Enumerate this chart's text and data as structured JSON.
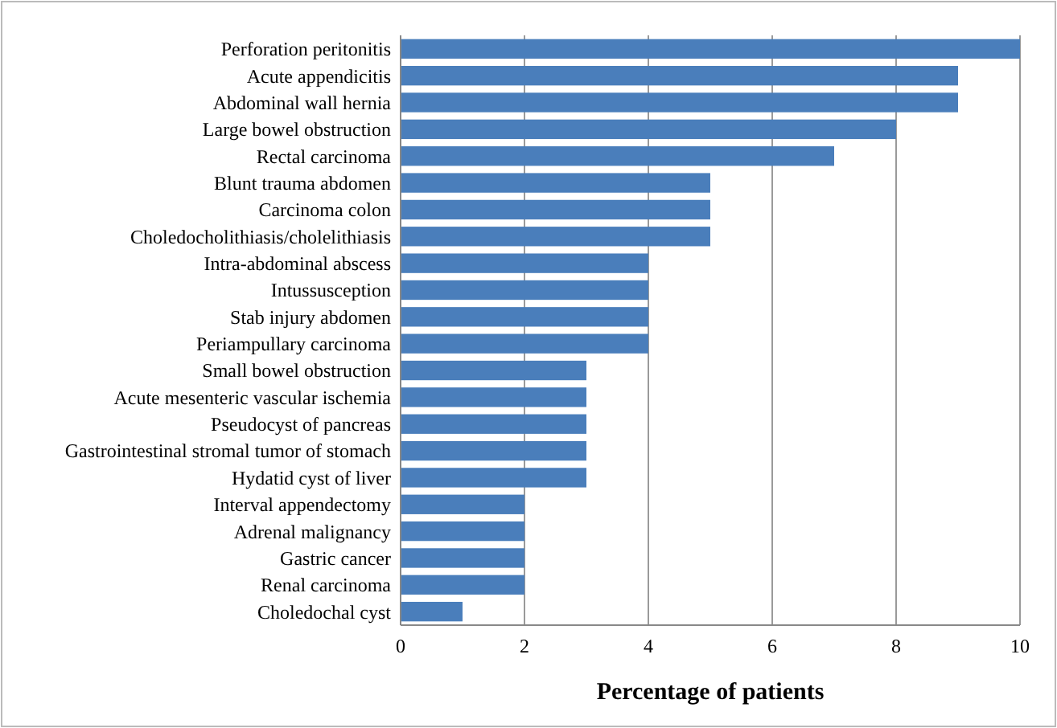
{
  "chart_data": {
    "type": "bar",
    "orientation": "horizontal",
    "xlabel": "Percentage of patients",
    "categories": [
      "Perforation peritonitis",
      "Acute appendicitis",
      "Abdominal wall hernia",
      "Large bowel obstruction",
      "Rectal carcinoma",
      "Blunt trauma abdomen",
      "Carcinoma colon",
      "Choledocholithiasis/cholelithiasis",
      "Intra-abdominal abscess",
      "Intussusception",
      "Stab injury abdomen",
      "Periampullary carcinoma",
      "Small bowel obstruction",
      "Acute mesenteric vascular ischemia",
      "Pseudocyst of pancreas",
      "Gastrointestinal stromal tumor of stomach",
      "Hydatid cyst of liver",
      "Interval appendectomy",
      "Adrenal malignancy",
      "Gastric cancer",
      "Renal carcinoma",
      "Choledochal cyst"
    ],
    "values": [
      10,
      9,
      9,
      8,
      7,
      5,
      5,
      5,
      4,
      4,
      4,
      4,
      3,
      3,
      3,
      3,
      3,
      2,
      2,
      2,
      2,
      1
    ],
    "color": "#4a7ebb",
    "xlim": [
      0,
      10
    ],
    "xticks": [
      0,
      2,
      4,
      6,
      8,
      10
    ],
    "grid": "x"
  }
}
